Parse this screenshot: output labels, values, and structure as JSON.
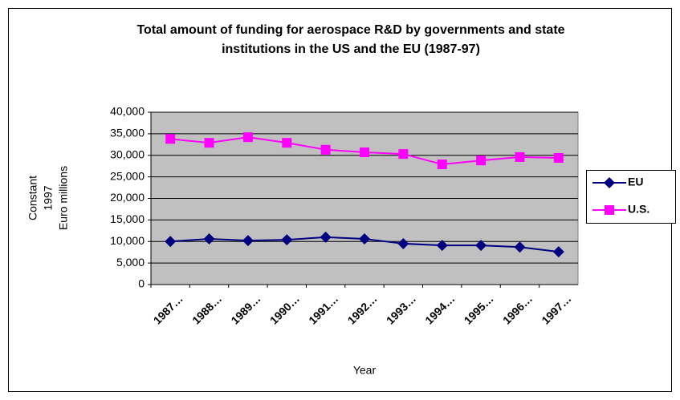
{
  "chart_data": {
    "type": "line",
    "title": [
      "Total amount of funding for aerospace R&D by governments and state",
      "institutions in the US and the EU  (1987-97)"
    ],
    "ylabel": [
      "Constant",
      "1997",
      "Euro millions"
    ],
    "xlabel": "Year",
    "categories": [
      "1987…",
      "1988…",
      "1989…",
      "1990…",
      "1991…",
      "1992…",
      "1993…",
      "1994…",
      "1995…",
      "1996…",
      "1997…"
    ],
    "series": [
      {
        "name": "EU",
        "color": "#000080",
        "marker": "diamond",
        "values": [
          10000,
          10600,
          10200,
          10400,
          11000,
          10600,
          9500,
          9100,
          9100,
          8700,
          7600
        ]
      },
      {
        "name": "U.S.",
        "color": "#ff00ff",
        "marker": "square",
        "values": [
          33800,
          32900,
          34200,
          32900,
          31300,
          30700,
          30300,
          27900,
          28800,
          29600,
          29400
        ]
      }
    ],
    "ylim": [
      0,
      40000
    ],
    "yticks": [
      0,
      {
        "value": 5000,
        "label": "5,000"
      },
      {
        "value": 10000,
        "label": "10,000"
      },
      {
        "value": 15000,
        "label": "15,000"
      },
      {
        "value": 20000,
        "label": "20,000"
      },
      {
        "value": 25000,
        "label": "25,000"
      },
      {
        "value": 30000,
        "label": "30,000"
      },
      {
        "value": 35000,
        "label": "35,000"
      },
      {
        "value": 40000,
        "label": "40,000"
      }
    ],
    "grid": true,
    "legend": "right"
  }
}
